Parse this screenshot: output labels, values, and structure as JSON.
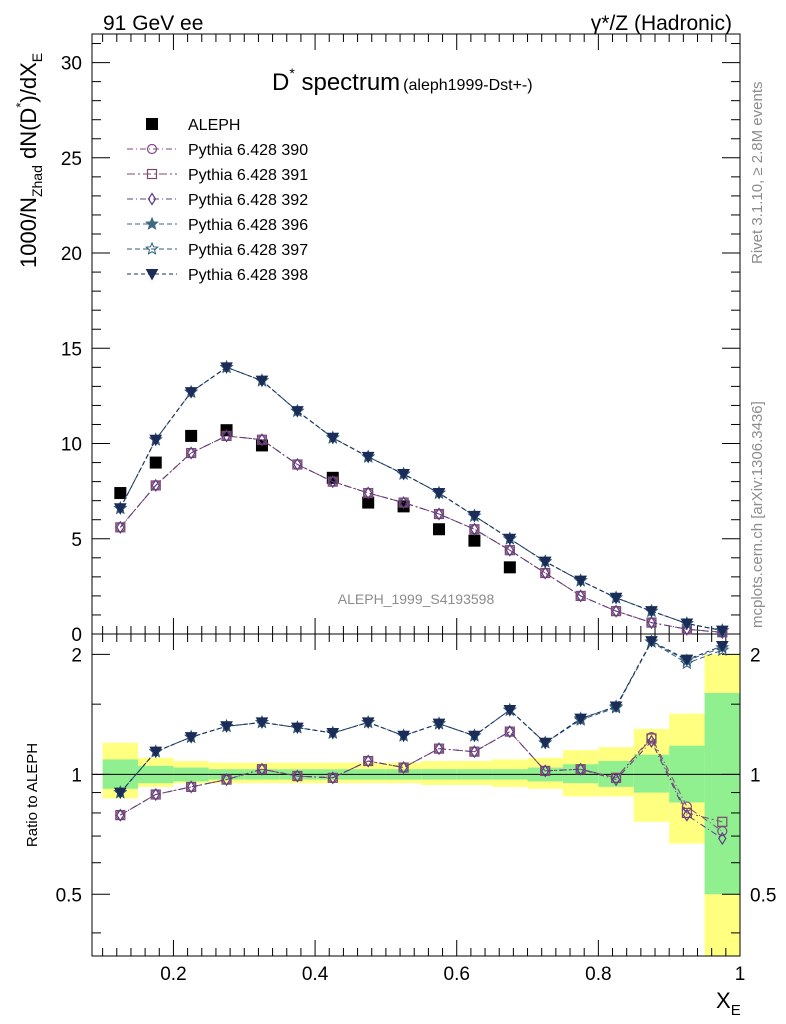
{
  "header": {
    "energy": "91 GeV ee",
    "process": "γ*/Z (Hadronic)"
  },
  "plot_title": {
    "main": "D",
    "main_sup": "*",
    "main_rest": " spectrum",
    "sub": "(aleph1999-Dst+-)"
  },
  "side_labels": {
    "rivet": "Rivet 3.1.10, ≥ 2.8M events",
    "mcplots": "mcplots.cern.ch [arXiv:1306.3436]"
  },
  "watermark": "ALEPH_1999_S4193598",
  "colors": {
    "data": "#000000",
    "p390": "#7e4a86",
    "p391": "#7e4a6a",
    "p392": "#5c3c84",
    "p396": "#3e6a80",
    "p397": "#2e5c7a",
    "p398": "#1c2c58",
    "band_inner": "#90f090",
    "band_outer": "#ffff80"
  },
  "chart_data": [
    {
      "type": "scatter",
      "panel": "main",
      "ylabel": "1000/N_Zhad dN(D*)/dX_E",
      "xlim": [
        0.085,
        1.0
      ],
      "ylim": [
        0,
        31.5
      ],
      "yticks": [
        0,
        5,
        10,
        15,
        20,
        25,
        30
      ],
      "x": [
        0.125,
        0.175,
        0.225,
        0.275,
        0.325,
        0.375,
        0.425,
        0.475,
        0.525,
        0.575,
        0.625,
        0.675,
        0.725,
        0.775,
        0.825,
        0.875,
        0.925,
        0.975
      ],
      "series": [
        {
          "name": "ALEPH",
          "marker": "square",
          "values": [
            7.4,
            9.0,
            10.4,
            10.7,
            9.9,
            null,
            8.2,
            6.9,
            6.7,
            5.5,
            4.9,
            3.5,
            null,
            null,
            null,
            null,
            null,
            null
          ]
        },
        {
          "name": "Pythia 6.428 390",
          "marker": "open-circle",
          "values": [
            5.6,
            7.8,
            9.5,
            10.4,
            10.2,
            8.9,
            8.0,
            7.4,
            6.9,
            6.3,
            5.5,
            4.4,
            3.2,
            2.0,
            1.2,
            0.6,
            0.25,
            0.08
          ]
        },
        {
          "name": "Pythia 6.428 391",
          "marker": "open-square",
          "values": [
            5.6,
            7.8,
            9.5,
            10.4,
            10.2,
            8.9,
            8.0,
            7.4,
            6.9,
            6.3,
            5.5,
            4.4,
            3.2,
            2.0,
            1.2,
            0.6,
            0.25,
            0.09
          ]
        },
        {
          "name": "Pythia 6.428 392",
          "marker": "open-diamond",
          "values": [
            5.6,
            7.8,
            9.5,
            10.4,
            10.2,
            8.9,
            8.0,
            7.4,
            6.9,
            6.3,
            5.5,
            4.4,
            3.2,
            2.0,
            1.2,
            0.6,
            0.25,
            0.08
          ]
        },
        {
          "name": "Pythia 6.428 396",
          "marker": "star",
          "values": [
            6.6,
            10.2,
            12.7,
            14.0,
            13.3,
            11.7,
            10.3,
            9.3,
            8.4,
            7.4,
            6.2,
            5.0,
            3.8,
            2.8,
            1.9,
            1.2,
            0.55,
            0.18
          ]
        },
        {
          "name": "Pythia 6.428 397",
          "marker": "open-star",
          "values": [
            6.6,
            10.2,
            12.7,
            14.0,
            13.3,
            11.7,
            10.3,
            9.3,
            8.4,
            7.4,
            6.2,
            5.0,
            3.8,
            2.8,
            1.9,
            1.2,
            0.55,
            0.18
          ]
        },
        {
          "name": "Pythia 6.428 398",
          "marker": "triangle-down",
          "values": [
            6.6,
            10.2,
            12.7,
            14.0,
            13.3,
            11.7,
            10.3,
            9.3,
            8.4,
            7.4,
            6.2,
            5.0,
            3.8,
            2.8,
            1.9,
            1.2,
            0.55,
            0.18
          ]
        }
      ]
    },
    {
      "type": "line",
      "panel": "ratio",
      "ylabel": "Ratio to ALEPH",
      "xlabel": "X_E",
      "xlim": [
        0.085,
        1.0
      ],
      "ylim": [
        0.35,
        2.25
      ],
      "ylog": true,
      "yticks": [
        0.5,
        1,
        2
      ],
      "xticks": [
        0.2,
        0.4,
        0.6,
        0.8,
        1
      ],
      "x": [
        0.125,
        0.175,
        0.225,
        0.275,
        0.325,
        0.375,
        0.425,
        0.475,
        0.525,
        0.575,
        0.625,
        0.675,
        0.725,
        0.775,
        0.825,
        0.875,
        0.925,
        0.975
      ],
      "bins": [
        [
          0.1,
          0.15
        ],
        [
          0.15,
          0.2
        ],
        [
          0.2,
          0.25
        ],
        [
          0.25,
          0.3
        ],
        [
          0.3,
          0.35
        ],
        [
          0.35,
          0.4
        ],
        [
          0.4,
          0.45
        ],
        [
          0.45,
          0.5
        ],
        [
          0.5,
          0.55
        ],
        [
          0.55,
          0.6
        ],
        [
          0.6,
          0.65
        ],
        [
          0.65,
          0.7
        ],
        [
          0.7,
          0.75
        ],
        [
          0.75,
          0.8
        ],
        [
          0.8,
          0.85
        ],
        [
          0.85,
          0.9
        ],
        [
          0.9,
          0.95
        ],
        [
          0.95,
          1.0
        ]
      ],
      "band_inner": [
        [
          0.92,
          1.09
        ],
        [
          0.95,
          1.05
        ],
        [
          0.96,
          1.04
        ],
        [
          0.97,
          1.03
        ],
        [
          0.97,
          1.03
        ],
        [
          0.97,
          1.03
        ],
        [
          0.97,
          1.03
        ],
        [
          0.97,
          1.03
        ],
        [
          0.97,
          1.03
        ],
        [
          0.97,
          1.03
        ],
        [
          0.97,
          1.03
        ],
        [
          0.97,
          1.03
        ],
        [
          0.96,
          1.04
        ],
        [
          0.95,
          1.06
        ],
        [
          0.93,
          1.08
        ],
        [
          0.9,
          1.12
        ],
        [
          0.85,
          1.18
        ],
        [
          0.5,
          1.6
        ]
      ],
      "band_outer": [
        [
          0.87,
          1.2
        ],
        [
          0.93,
          1.1
        ],
        [
          0.95,
          1.08
        ],
        [
          0.95,
          1.07
        ],
        [
          0.95,
          1.07
        ],
        [
          0.95,
          1.07
        ],
        [
          0.95,
          1.07
        ],
        [
          0.95,
          1.07
        ],
        [
          0.95,
          1.07
        ],
        [
          0.94,
          1.08
        ],
        [
          0.94,
          1.08
        ],
        [
          0.93,
          1.09
        ],
        [
          0.92,
          1.1
        ],
        [
          0.88,
          1.15
        ],
        [
          0.88,
          1.17
        ],
        [
          0.76,
          1.3
        ],
        [
          0.67,
          1.42
        ],
        [
          0.35,
          2.0
        ]
      ],
      "series": [
        {
          "name": "Pythia 6.428 390",
          "values": [
            0.79,
            0.89,
            0.93,
            0.97,
            1.03,
            0.99,
            0.98,
            1.08,
            1.04,
            1.16,
            1.14,
            1.28,
            1.02,
            1.03,
            0.98,
            1.24,
            0.83,
            0.72
          ]
        },
        {
          "name": "Pythia 6.428 391",
          "values": [
            0.79,
            0.89,
            0.93,
            0.97,
            1.03,
            0.99,
            0.98,
            1.08,
            1.04,
            1.16,
            1.14,
            1.28,
            1.02,
            1.03,
            0.98,
            1.23,
            0.8,
            0.76
          ]
        },
        {
          "name": "Pythia 6.428 392",
          "values": [
            0.79,
            0.89,
            0.93,
            0.97,
            1.03,
            0.99,
            0.98,
            1.08,
            1.04,
            1.16,
            1.14,
            1.28,
            1.02,
            1.03,
            0.97,
            1.21,
            0.79,
            0.69
          ]
        },
        {
          "name": "Pythia 6.428 396",
          "values": [
            0.9,
            1.14,
            1.24,
            1.32,
            1.35,
            1.31,
            1.27,
            1.35,
            1.25,
            1.34,
            1.25,
            1.45,
            1.2,
            1.38,
            1.48,
            2.15,
            1.93,
            2.08
          ]
        },
        {
          "name": "Pythia 6.428 397",
          "values": [
            0.9,
            1.14,
            1.24,
            1.32,
            1.35,
            1.31,
            1.27,
            1.35,
            1.25,
            1.34,
            1.25,
            1.45,
            1.2,
            1.37,
            1.47,
            2.15,
            1.9,
            2.05
          ]
        },
        {
          "name": "Pythia 6.428 398",
          "values": [
            0.9,
            1.14,
            1.24,
            1.32,
            1.35,
            1.31,
            1.27,
            1.35,
            1.25,
            1.34,
            1.25,
            1.45,
            1.2,
            1.38,
            1.48,
            2.16,
            1.94,
            2.1
          ]
        }
      ]
    }
  ]
}
